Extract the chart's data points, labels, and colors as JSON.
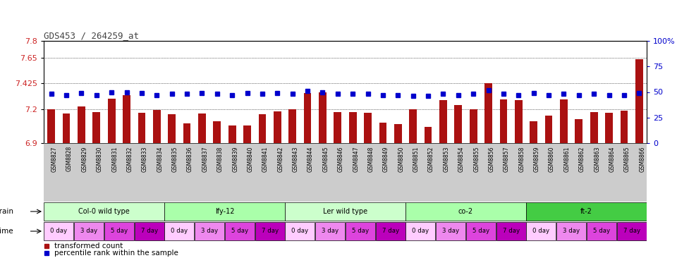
{
  "title": "GDS453 / 264259_at",
  "samples": [
    "GSM8827",
    "GSM8828",
    "GSM8829",
    "GSM8830",
    "GSM8831",
    "GSM8832",
    "GSM8833",
    "GSM8834",
    "GSM8835",
    "GSM8836",
    "GSM8837",
    "GSM8838",
    "GSM8839",
    "GSM8840",
    "GSM8841",
    "GSM8842",
    "GSM8843",
    "GSM8844",
    "GSM8845",
    "GSM8846",
    "GSM8847",
    "GSM8848",
    "GSM8849",
    "GSM8850",
    "GSM8851",
    "GSM8852",
    "GSM8853",
    "GSM8854",
    "GSM8855",
    "GSM8856",
    "GSM8857",
    "GSM8858",
    "GSM8859",
    "GSM8860",
    "GSM8861",
    "GSM8862",
    "GSM8863",
    "GSM8864",
    "GSM8865",
    "GSM8866"
  ],
  "bar_values": [
    7.2,
    7.16,
    7.225,
    7.175,
    7.29,
    7.325,
    7.17,
    7.19,
    7.155,
    7.075,
    7.16,
    7.095,
    7.055,
    7.055,
    7.155,
    7.18,
    7.195,
    7.34,
    7.345,
    7.175,
    7.175,
    7.165,
    7.08,
    7.065,
    7.195,
    7.04,
    7.28,
    7.235,
    7.2,
    7.425,
    7.285,
    7.28,
    7.09,
    7.145,
    7.285,
    7.11,
    7.175,
    7.165,
    7.185,
    7.64
  ],
  "dot_values": [
    48,
    47,
    49,
    47,
    50,
    50,
    49,
    47,
    48,
    48,
    49,
    48,
    47,
    49,
    48,
    49,
    48,
    51,
    50,
    48,
    48,
    48,
    47,
    47,
    46,
    46,
    48,
    47,
    48,
    52,
    48,
    47,
    49,
    47,
    48,
    47,
    48,
    47,
    47,
    49
  ],
  "ylim_left": [
    6.9,
    7.8
  ],
  "ylim_right": [
    0,
    100
  ],
  "yticks_left": [
    6.9,
    7.2,
    7.425,
    7.65,
    7.8
  ],
  "ytick_labels_left": [
    "6.9",
    "7.2",
    "7.425",
    "7.65",
    "7.8"
  ],
  "yticks_right": [
    0,
    25,
    50,
    75,
    100
  ],
  "ytick_labels_right": [
    "0",
    "25",
    "50",
    "75",
    "100%"
  ],
  "bar_color": "#AA1111",
  "dot_color": "#0000CC",
  "bg_color": "#ffffff",
  "tick_bg_color": "#cccccc",
  "strains": [
    {
      "label": "Col-0 wild type",
      "start": 0,
      "end": 7,
      "color": "#ccffcc"
    },
    {
      "label": "lfy-12",
      "start": 8,
      "end": 15,
      "color": "#aaffaa"
    },
    {
      "label": "Ler wild type",
      "start": 16,
      "end": 23,
      "color": "#ccffcc"
    },
    {
      "label": "co-2",
      "start": 24,
      "end": 31,
      "color": "#aaffaa"
    },
    {
      "label": "ft-2",
      "start": 32,
      "end": 39,
      "color": "#44cc44"
    }
  ],
  "time_labels": [
    "0 day",
    "3 day",
    "5 day",
    "7 day"
  ],
  "time_colors": [
    "#ffffff",
    "#ffaaff",
    "#dd55dd",
    "#bb00bb"
  ]
}
